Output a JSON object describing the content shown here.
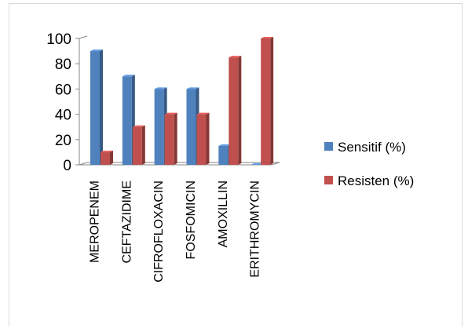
{
  "chart_data": {
    "type": "bar",
    "categories": [
      "MEROPENEM",
      "CEFTAZIDIME",
      "CIFROFLOXACIN",
      "FOSFOMICIN",
      "AMOXILLIN",
      "ERITHROMYCIN"
    ],
    "series": [
      {
        "name": "Sensitif  (%)",
        "values": [
          90,
          70,
          60,
          60,
          15,
          0
        ],
        "color": "#4f81bd"
      },
      {
        "name": "Resisten  (%)",
        "values": [
          10,
          30,
          40,
          40,
          85,
          100
        ],
        "color": "#c0504d"
      }
    ],
    "ylim": [
      0,
      100
    ],
    "yticks": [
      0,
      20,
      40,
      60,
      80,
      100
    ],
    "title": "",
    "xlabel": "",
    "ylabel": "",
    "legend_position": "right"
  }
}
